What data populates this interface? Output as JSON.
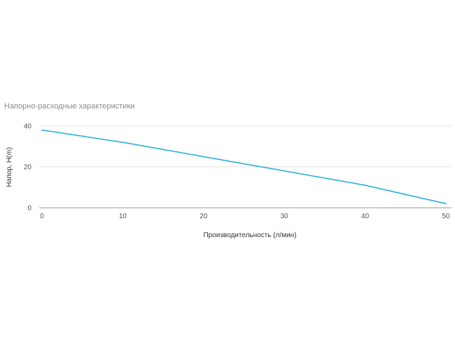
{
  "chart_data": {
    "type": "line",
    "title": "Напорно-расходные характеристики",
    "xlabel": "Производительность (л/мин)",
    "ylabel": "Напор, H(m)",
    "x": [
      0,
      10,
      20,
      30,
      40,
      50
    ],
    "xlim": [
      0,
      50
    ],
    "ylim": [
      0,
      40
    ],
    "x_ticks": [
      "0",
      "10",
      "20",
      "30",
      "40",
      "50"
    ],
    "y_ticks": [
      "0",
      "20",
      "40"
    ],
    "grid": true,
    "series": [
      {
        "values": [
          38,
          32,
          25,
          18,
          11,
          2
        ],
        "color": "#2bb3d6"
      }
    ]
  }
}
